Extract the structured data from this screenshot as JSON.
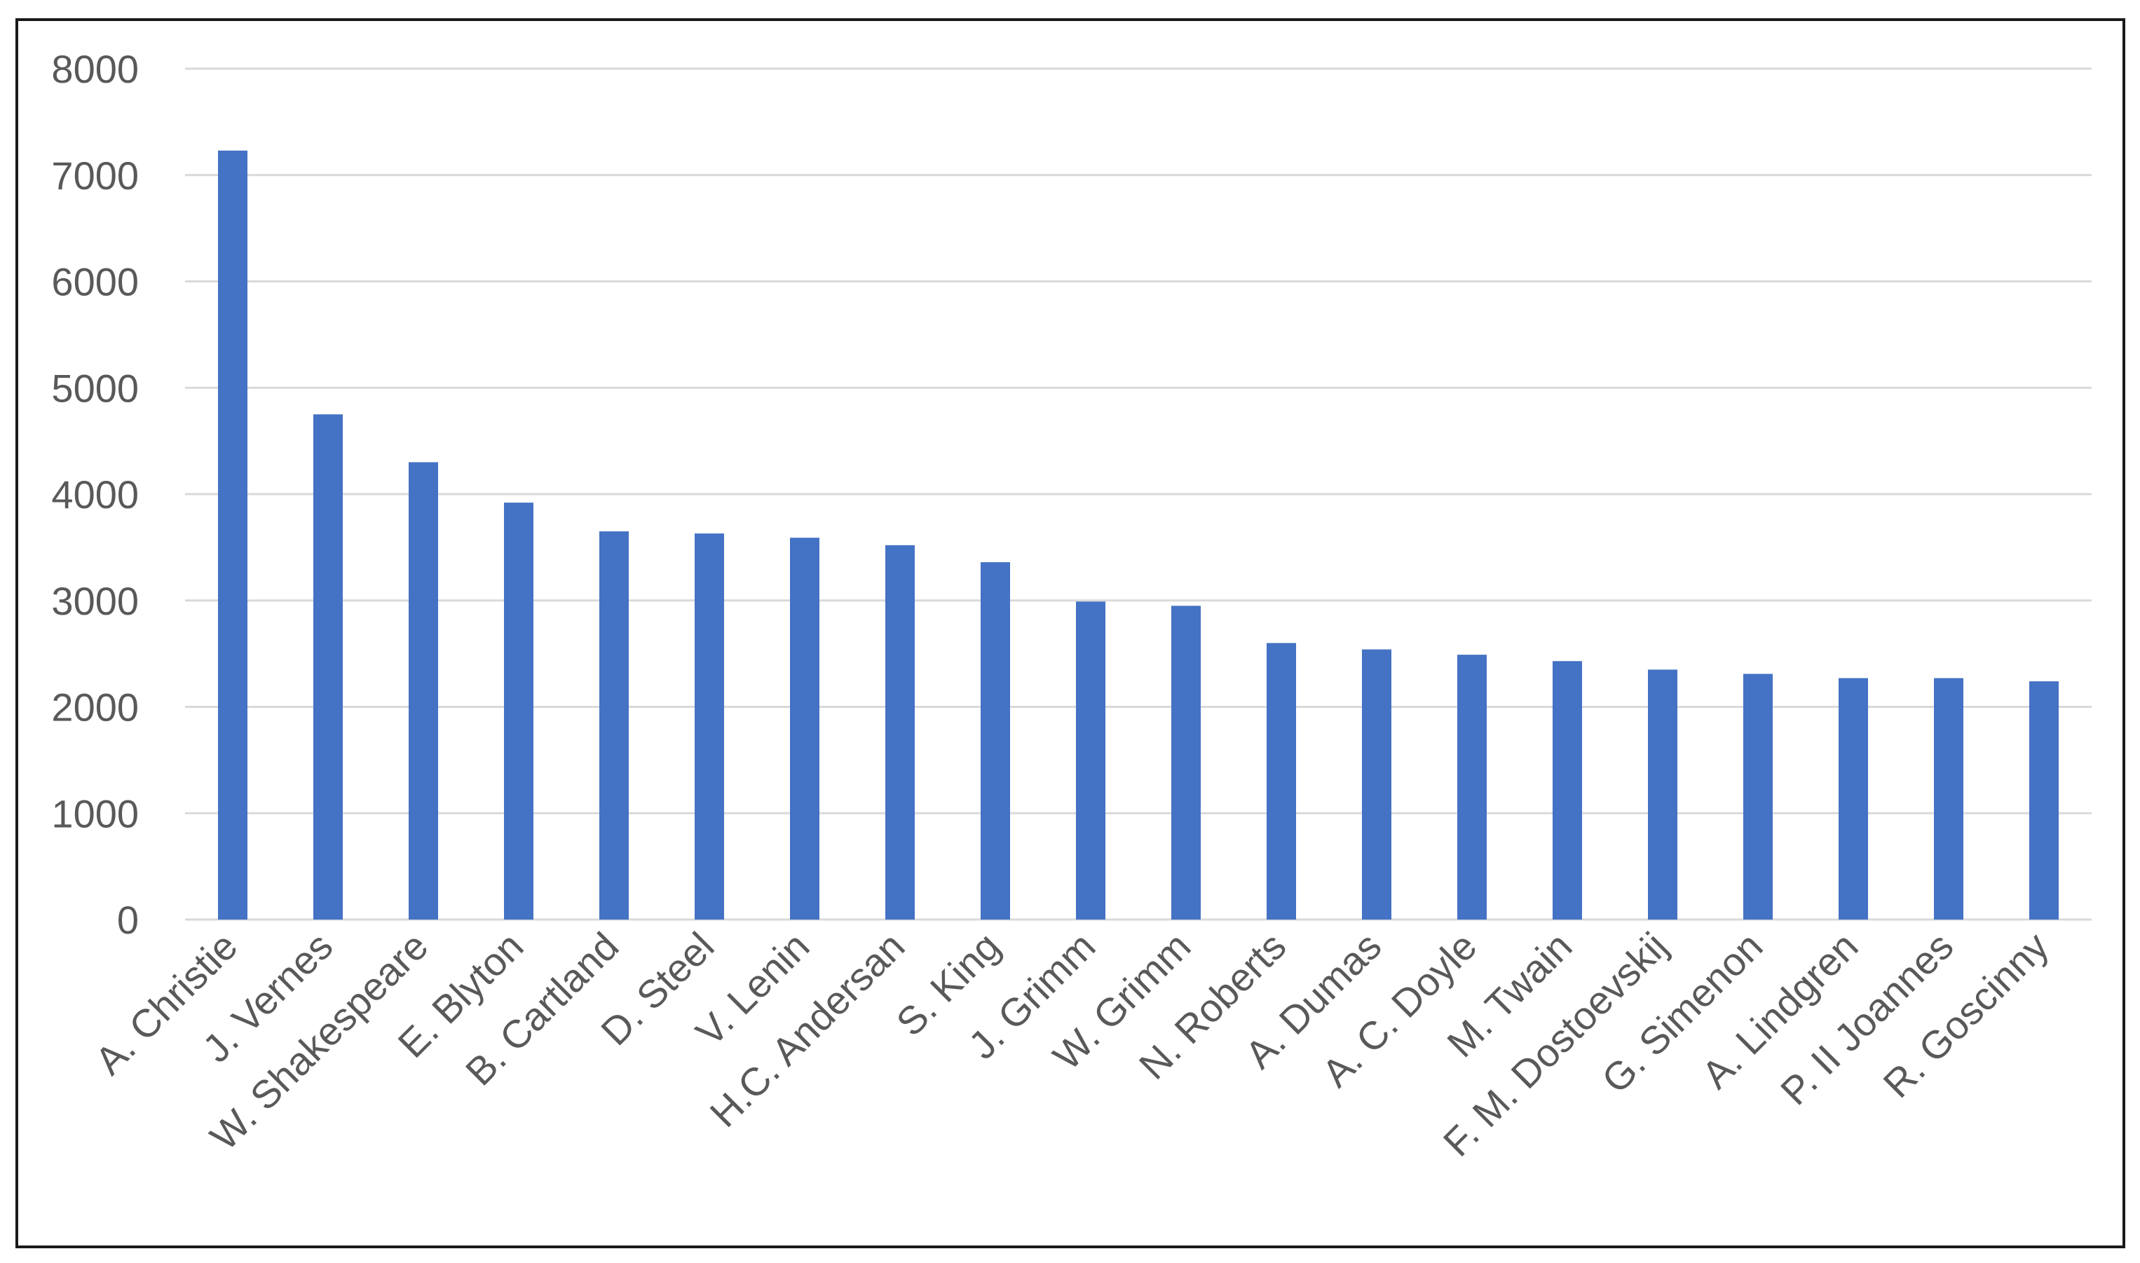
{
  "chart_data": {
    "type": "bar",
    "title": "",
    "xlabel": "",
    "ylabel": "",
    "categories": [
      "A. Christie",
      "J. Vernes",
      "W. Shakespeare",
      "E. Blyton",
      "B. Cartland",
      "D. Steel",
      "V. Lenin",
      "H.C. Andersan",
      "S. King",
      "J. Grimm",
      "W. Grimm",
      "N. Roberts",
      "A. Dumas",
      "A. C. Doyle",
      "M. Twain",
      "F. M. Dostoevskij",
      "G. Simenon",
      "A. Lindgren",
      "P. II Joannes",
      "R. Goscinny"
    ],
    "values": [
      7230,
      4750,
      4300,
      3920,
      3650,
      3630,
      3590,
      3520,
      3360,
      2990,
      2950,
      2600,
      2540,
      2490,
      2430,
      2350,
      2310,
      2270,
      2270,
      2240
    ],
    "ylim": [
      0,
      8000
    ],
    "yticks": [
      0,
      1000,
      2000,
      3000,
      4000,
      5000,
      6000,
      7000,
      8000
    ],
    "grid": true,
    "legend": "none",
    "bar_color": "#4472C4",
    "grid_color": "#D9D9D9",
    "axis_color": "#D9D9D9",
    "label_color": "#595959"
  }
}
